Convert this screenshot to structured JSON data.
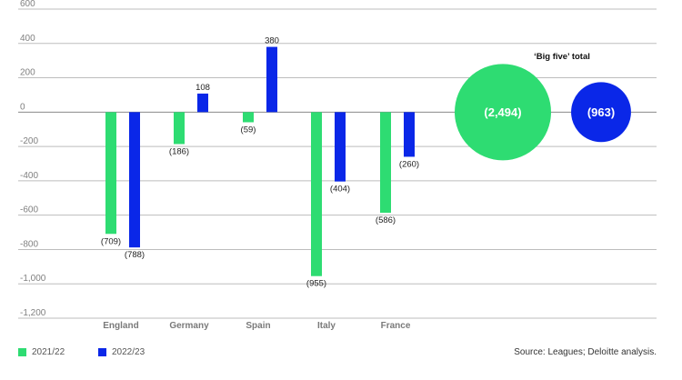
{
  "chart_data": {
    "type": "bar",
    "categories": [
      "England",
      "Germany",
      "Spain",
      "Italy",
      "France"
    ],
    "series": [
      {
        "name": "2021/22",
        "values": [
          -709,
          -186,
          -59,
          -955,
          -586
        ],
        "labels": [
          "(709)",
          "(186)",
          "(59)",
          "(955)",
          "(586)"
        ]
      },
      {
        "name": "2022/23",
        "values": [
          -788,
          108,
          380,
          -404,
          -260
        ],
        "labels": [
          "(788)",
          "108",
          "380",
          "(404)",
          "(260)"
        ]
      }
    ],
    "ylim": [
      -1200,
      600
    ],
    "yticks": [
      600,
      400,
      200,
      0,
      -200,
      -400,
      -600,
      -800,
      -1000,
      -1200
    ],
    "ytick_labels": [
      "600",
      "400",
      "200",
      "0",
      "-200",
      "-400",
      "-600",
      "-800",
      "-1,000",
      "-1,200"
    ],
    "grid": true,
    "bubbles": {
      "title": "‘Big five’ total",
      "items": [
        {
          "series": "2021/22",
          "value": -2494,
          "label": "(2,494)"
        },
        {
          "series": "2022/23",
          "value": -963,
          "label": "(963)"
        }
      ]
    },
    "colors": {
      "2021/22": "#2EDC72",
      "2022/23": "#0A27E8"
    }
  },
  "legend": [
    {
      "label": "2021/22",
      "color": "#2EDC72"
    },
    {
      "label": "2022/23",
      "color": "#0A27E8"
    }
  ],
  "source": "Source: Leagues; Deloitte analysis."
}
